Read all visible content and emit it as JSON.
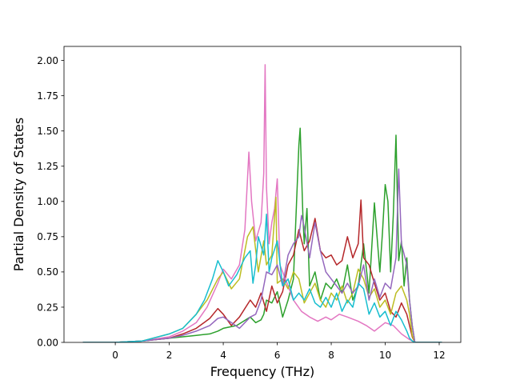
{
  "chart_data": {
    "type": "line",
    "title": "",
    "xlabel": "Frequency (THz)",
    "ylabel": "Partial Density of States",
    "xlim": [
      -1.9,
      12.8
    ],
    "ylim": [
      0.0,
      2.1
    ],
    "xticks": [
      0,
      2,
      4,
      6,
      8,
      10,
      12
    ],
    "xtick_labels": [
      "0",
      "2",
      "4",
      "6",
      "8",
      "10",
      "12"
    ],
    "yticks": [
      0.0,
      0.25,
      0.5,
      0.75,
      1.0,
      1.25,
      1.5,
      1.75,
      2.0
    ],
    "ytick_labels": [
      "0.00",
      "0.25",
      "0.50",
      "0.75",
      "1.00",
      "1.25",
      "1.50",
      "1.75",
      "2.00"
    ],
    "grid": false,
    "legend": "none",
    "series": [
      {
        "color": "#2ca02c",
        "x": [
          -1.2,
          0,
          1,
          2,
          2.5,
          3,
          3.5,
          3.8,
          4,
          4.5,
          5,
          5.2,
          5.4,
          5.5,
          5.6,
          5.8,
          6,
          6.2,
          6.4,
          6.6,
          6.8,
          6.85,
          6.95,
          7.0,
          7.1,
          7.2,
          7.4,
          7.6,
          7.8,
          8,
          8.2,
          8.4,
          8.6,
          8.8,
          9,
          9.2,
          9.4,
          9.6,
          9.8,
          9.9,
          10,
          10.1,
          10.2,
          10.3,
          10.4,
          10.5,
          10.6,
          10.7,
          10.8,
          10.9,
          11.0,
          11.1,
          12.1
        ],
        "values": [
          0,
          0,
          0.01,
          0.03,
          0.04,
          0.05,
          0.06,
          0.08,
          0.1,
          0.12,
          0.18,
          0.14,
          0.16,
          0.2,
          0.3,
          0.28,
          0.36,
          0.18,
          0.3,
          0.45,
          1.4,
          1.52,
          0.9,
          0.7,
          0.95,
          0.4,
          0.5,
          0.3,
          0.42,
          0.38,
          0.45,
          0.35,
          0.55,
          0.3,
          0.4,
          0.7,
          0.35,
          0.99,
          0.5,
          0.78,
          1.12,
          1.0,
          0.5,
          0.9,
          1.47,
          0.58,
          0.72,
          0.4,
          0.6,
          0.3,
          0.12,
          0,
          0
        ]
      },
      {
        "color": "#b5272a",
        "x": [
          -1.2,
          0,
          1,
          2,
          2.5,
          3,
          3.5,
          3.8,
          4,
          4.3,
          4.6,
          5,
          5.2,
          5.4,
          5.6,
          5.8,
          6,
          6.2,
          6.4,
          6.6,
          6.8,
          7,
          7.2,
          7.4,
          7.6,
          7.8,
          8,
          8.2,
          8.4,
          8.6,
          8.8,
          9,
          9.1,
          9.2,
          9.4,
          9.6,
          9.8,
          10,
          10.2,
          10.4,
          10.6,
          10.8,
          10.9,
          11.0,
          11.1,
          12.1
        ],
        "values": [
          0,
          0,
          0.01,
          0.03,
          0.06,
          0.1,
          0.17,
          0.24,
          0.2,
          0.12,
          0.18,
          0.3,
          0.25,
          0.35,
          0.22,
          0.4,
          0.28,
          0.36,
          0.55,
          0.62,
          0.8,
          0.65,
          0.72,
          0.88,
          0.65,
          0.6,
          0.62,
          0.55,
          0.58,
          0.75,
          0.6,
          0.7,
          1.01,
          0.6,
          0.55,
          0.42,
          0.3,
          0.35,
          0.22,
          0.18,
          0.28,
          0.2,
          0.12,
          0.04,
          0,
          0
        ]
      },
      {
        "color": "#e377c2",
        "x": [
          -1.2,
          0,
          1,
          2,
          2.5,
          3,
          3.4,
          3.8,
          4,
          4.3,
          4.6,
          4.8,
          4.95,
          5.05,
          5.2,
          5.4,
          5.5,
          5.55,
          5.6,
          5.7,
          5.8,
          5.9,
          6.0,
          6.1,
          6.3,
          6.6,
          6.9,
          7.2,
          7.5,
          7.8,
          8,
          8.3,
          8.6,
          9,
          9.3,
          9.6,
          10,
          10.3,
          10.6,
          10.9,
          11.0,
          11.1,
          12.1
        ],
        "values": [
          0,
          0,
          0.01,
          0.04,
          0.08,
          0.14,
          0.25,
          0.42,
          0.52,
          0.45,
          0.55,
          0.8,
          1.35,
          1.0,
          0.72,
          0.85,
          1.2,
          1.97,
          1.1,
          0.7,
          0.85,
          0.95,
          1.16,
          0.55,
          0.45,
          0.3,
          0.22,
          0.18,
          0.15,
          0.18,
          0.16,
          0.2,
          0.18,
          0.15,
          0.12,
          0.08,
          0.14,
          0.12,
          0.06,
          0.02,
          0.01,
          0,
          0
        ]
      },
      {
        "color": "#bcbd22",
        "x": [
          -1.2,
          0,
          1,
          2,
          2.5,
          3,
          3.4,
          3.8,
          4,
          4.3,
          4.6,
          4.9,
          5.1,
          5.3,
          5.5,
          5.6,
          5.8,
          5.95,
          6.0,
          6.2,
          6.4,
          6.6,
          6.8,
          7.0,
          7.2,
          7.4,
          7.6,
          7.8,
          8,
          8.2,
          8.4,
          8.6,
          8.8,
          9,
          9.2,
          9.4,
          9.6,
          9.8,
          10,
          10.2,
          10.4,
          10.6,
          10.8,
          10.9,
          11.0,
          11.1,
          12.1
        ],
        "values": [
          0,
          0,
          0.01,
          0.06,
          0.1,
          0.2,
          0.3,
          0.45,
          0.5,
          0.38,
          0.45,
          0.75,
          0.82,
          0.5,
          0.72,
          0.55,
          0.62,
          1.03,
          0.42,
          0.45,
          0.38,
          0.5,
          0.45,
          0.28,
          0.35,
          0.42,
          0.3,
          0.25,
          0.35,
          0.3,
          0.4,
          0.28,
          0.35,
          0.52,
          0.45,
          0.32,
          0.38,
          0.25,
          0.3,
          0.2,
          0.35,
          0.4,
          0.3,
          0.2,
          0.05,
          0,
          0
        ]
      },
      {
        "color": "#9467bd",
        "x": [
          -1.2,
          0,
          1,
          2,
          2.5,
          3,
          3.5,
          3.8,
          4,
          4.3,
          4.6,
          5,
          5.2,
          5.4,
          5.6,
          5.8,
          6,
          6.2,
          6.4,
          6.6,
          6.8,
          6.9,
          7.0,
          7.2,
          7.4,
          7.6,
          7.8,
          8,
          8.2,
          8.4,
          8.6,
          8.8,
          9,
          9.2,
          9.4,
          9.6,
          9.8,
          10,
          10.2,
          10.4,
          10.5,
          10.6,
          10.8,
          10.9,
          11.0,
          11.1,
          12.1
        ],
        "values": [
          0,
          0,
          0.01,
          0.03,
          0.05,
          0.08,
          0.12,
          0.17,
          0.18,
          0.14,
          0.1,
          0.18,
          0.2,
          0.3,
          0.5,
          0.48,
          0.55,
          0.4,
          0.62,
          0.7,
          0.75,
          0.9,
          0.82,
          0.6,
          0.85,
          0.65,
          0.5,
          0.45,
          0.4,
          0.35,
          0.42,
          0.35,
          0.4,
          0.55,
          0.3,
          0.45,
          0.32,
          0.42,
          0.38,
          0.6,
          1.23,
          0.7,
          0.55,
          0.3,
          0.12,
          0,
          0
        ]
      },
      {
        "color": "#17becf",
        "x": [
          -1.2,
          0,
          1,
          2,
          2.5,
          3,
          3.3,
          3.6,
          3.8,
          4.0,
          4.2,
          4.5,
          4.8,
          5.0,
          5.1,
          5.2,
          5.3,
          5.5,
          5.6,
          5.7,
          5.8,
          6.0,
          6.2,
          6.4,
          6.6,
          6.8,
          7.0,
          7.2,
          7.4,
          7.6,
          7.8,
          8,
          8.2,
          8.4,
          8.6,
          8.8,
          9,
          9.2,
          9.4,
          9.6,
          9.8,
          10,
          10.2,
          10.4,
          10.6,
          10.8,
          10.9,
          11.0,
          11.1,
          12.1
        ],
        "values": [
          0,
          0,
          0.01,
          0.06,
          0.1,
          0.2,
          0.3,
          0.45,
          0.58,
          0.5,
          0.4,
          0.48,
          0.6,
          0.65,
          0.42,
          0.55,
          0.75,
          0.62,
          0.91,
          0.5,
          0.6,
          0.72,
          0.4,
          0.45,
          0.3,
          0.35,
          0.3,
          0.38,
          0.28,
          0.25,
          0.32,
          0.25,
          0.35,
          0.22,
          0.3,
          0.25,
          0.42,
          0.38,
          0.2,
          0.28,
          0.18,
          0.22,
          0.12,
          0.22,
          0.16,
          0.08,
          0.03,
          0.01,
          0,
          0
        ]
      }
    ]
  }
}
